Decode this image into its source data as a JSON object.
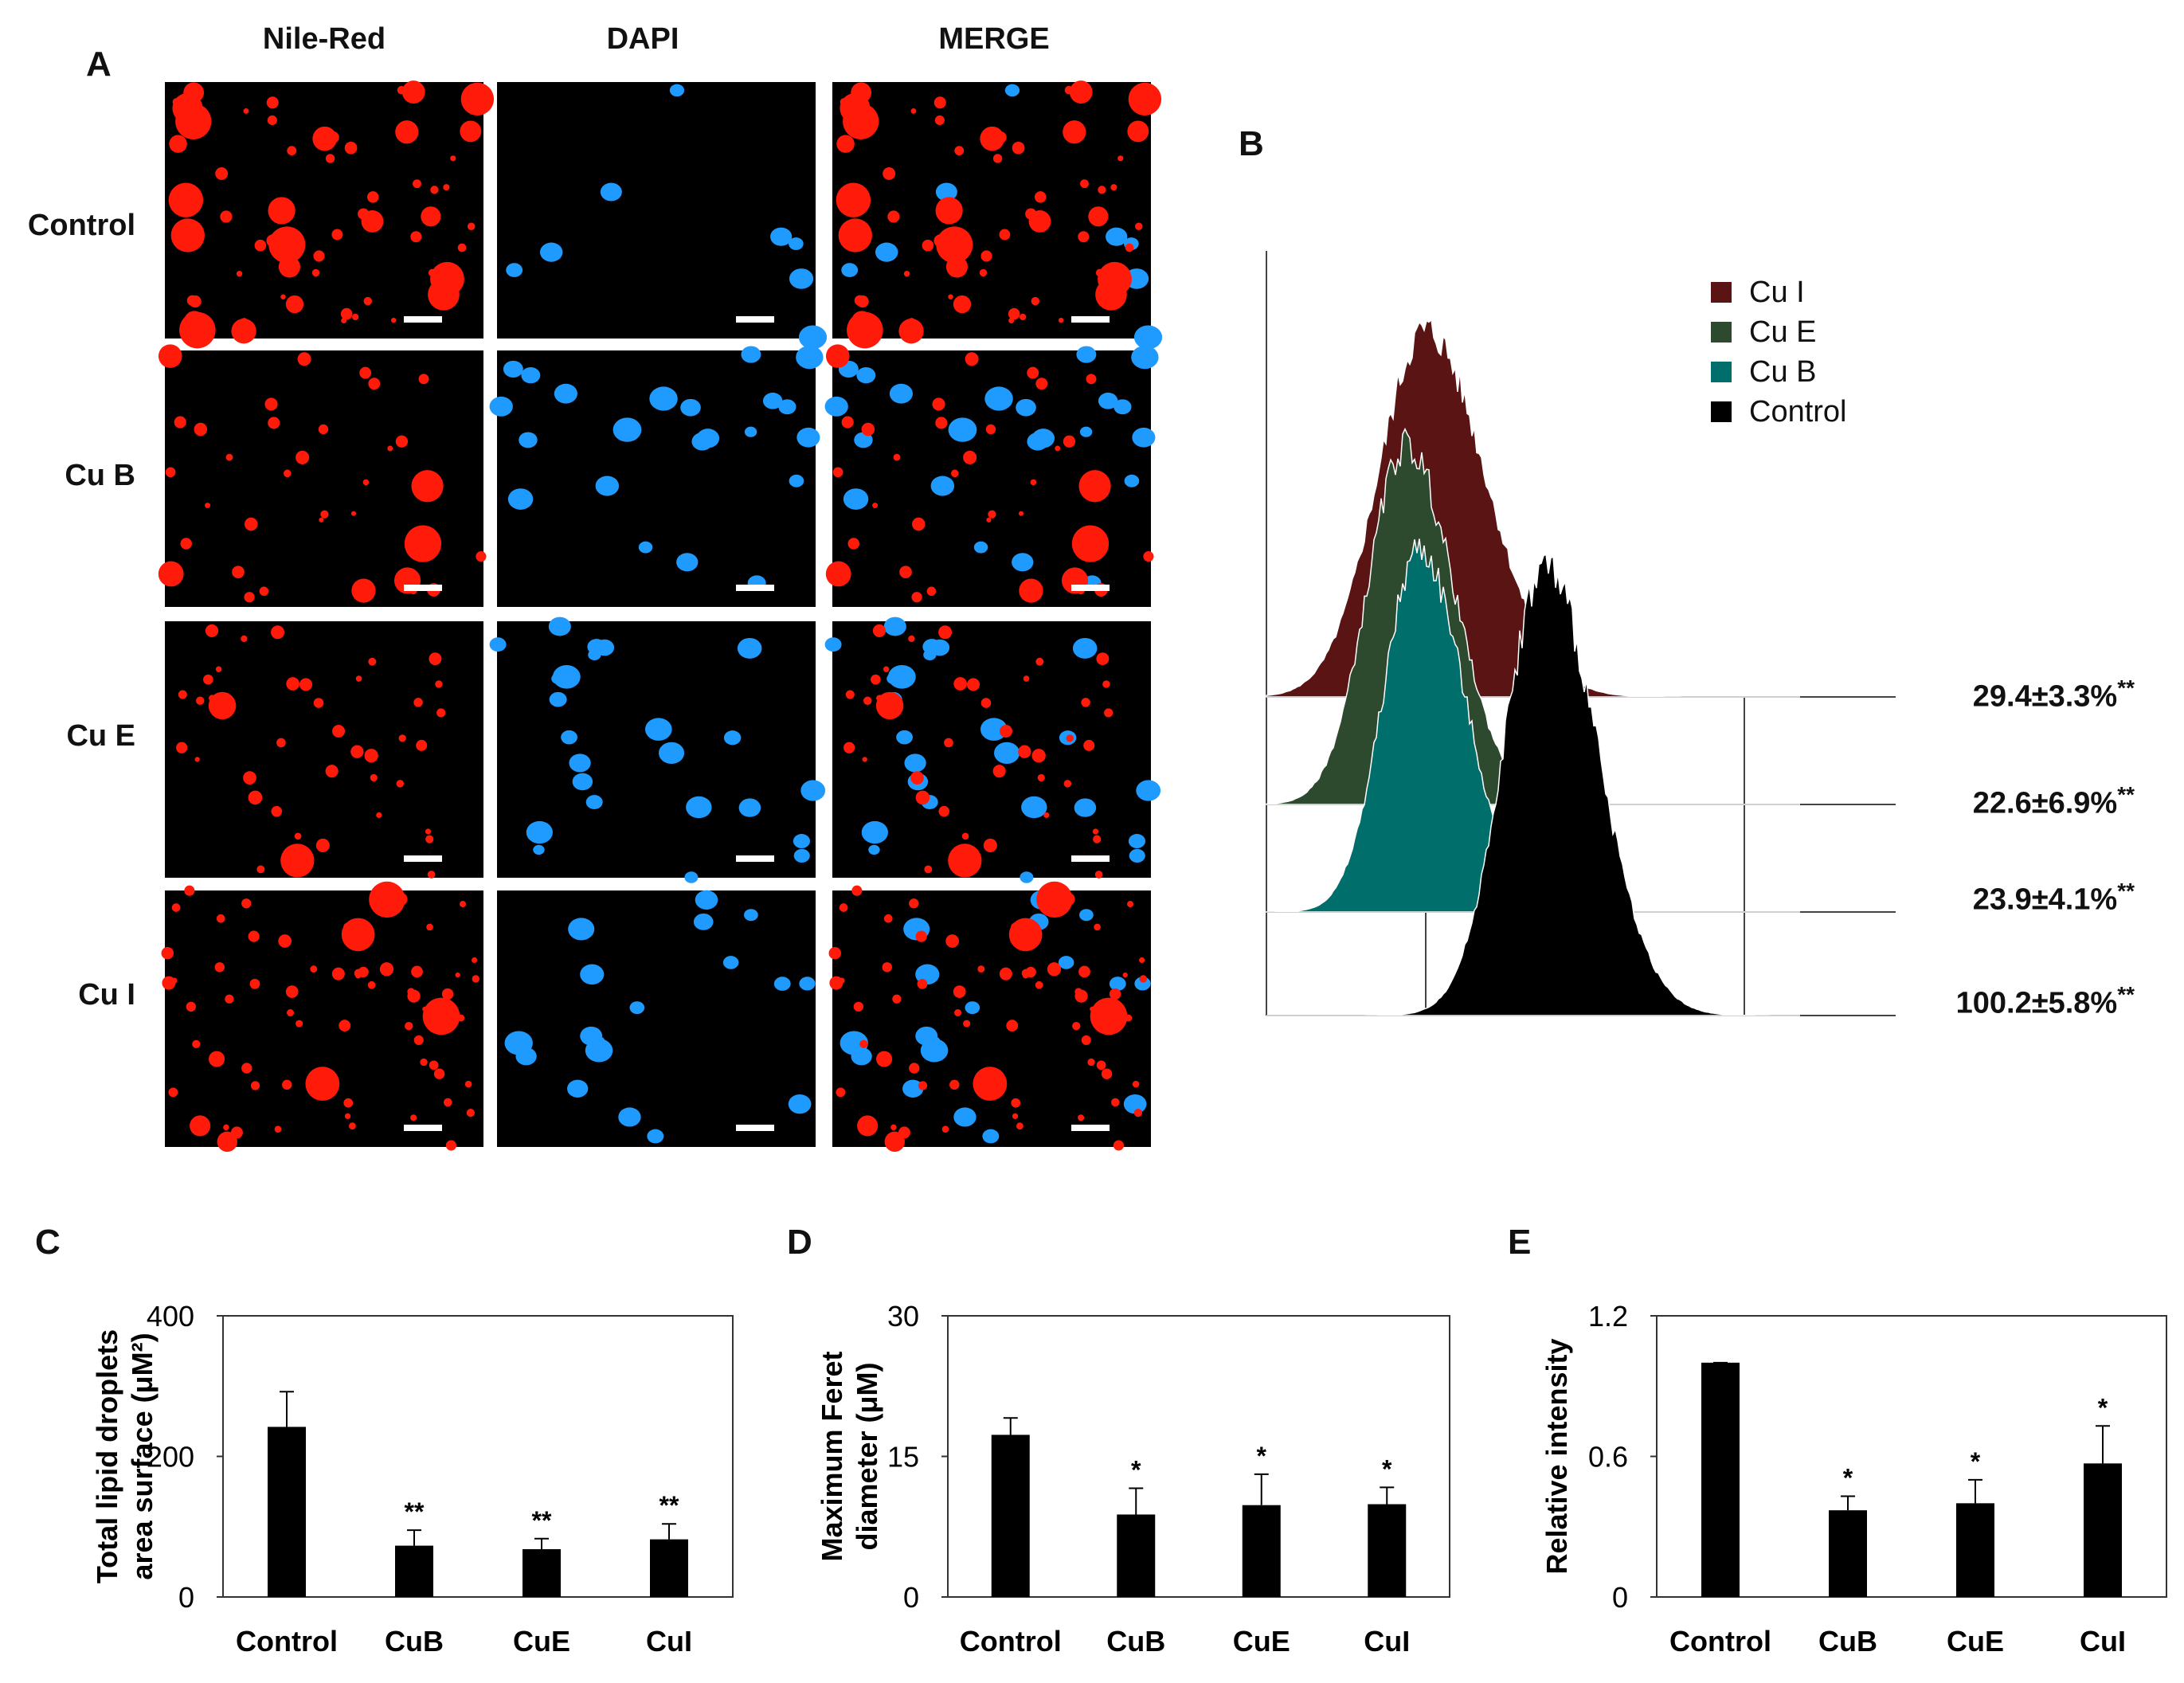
{
  "panel_labels": {
    "a": "A",
    "b": "B",
    "c": "C",
    "d": "D",
    "e": "E"
  },
  "panel_a": {
    "columns": [
      "Nile-Red",
      "DAPI",
      "MERGE"
    ],
    "rows": [
      "Control",
      "Cu B",
      "Cu E",
      "Cu I"
    ]
  },
  "colors": {
    "nile_red": "#ff1a0a",
    "dapi": "#1f9bff",
    "cu_i": "#5a1414",
    "cu_e": "#2e4a2e",
    "cu_b": "#006e6a",
    "control": "#000000"
  },
  "panel_b": {
    "legend": [
      {
        "label": "Cu I",
        "color": "#5a1414"
      },
      {
        "label": "Cu E",
        "color": "#2e4a2e"
      },
      {
        "label": "Cu B",
        "color": "#006e6a"
      },
      {
        "label": "Control",
        "color": "#000000"
      }
    ],
    "values": [
      {
        "text": "29.4±3.3%",
        "sig": "**"
      },
      {
        "text": "22.6±6.9%",
        "sig": "**"
      },
      {
        "text": "23.9±4.1%",
        "sig": "**"
      },
      {
        "text": "100.2±5.8%",
        "sig": "**"
      }
    ]
  },
  "chart_data": [
    {
      "panel": "C",
      "type": "bar",
      "ylabel": "Total lipid droplets area surface (μM²)",
      "ylabel_lines": [
        "Total lipid droplets",
        "area surface (μM²)"
      ],
      "categories": [
        "Control",
        "CuB",
        "CuE",
        "CuI"
      ],
      "values": [
        242,
        73,
        68,
        82
      ],
      "errors": [
        50,
        22,
        15,
        22
      ],
      "significance": [
        "",
        "**",
        "**",
        "**"
      ],
      "yticks": [
        "0",
        "200",
        "400"
      ],
      "ylim": [
        0,
        400
      ]
    },
    {
      "panel": "D",
      "type": "bar",
      "ylabel": "Maximum Feret diameter (μM)",
      "ylabel_lines": [
        "Maximum Feret",
        "diameter (μM)"
      ],
      "categories": [
        "Control",
        "CuB",
        "CuE",
        "CuI"
      ],
      "values": [
        17.3,
        8.8,
        9.8,
        9.9
      ],
      "errors": [
        1.8,
        2.8,
        3.3,
        1.8
      ],
      "significance": [
        "",
        "*",
        "*",
        "*"
      ],
      "yticks": [
        "0",
        "15",
        "30"
      ],
      "ylim": [
        0,
        30
      ]
    },
    {
      "panel": "E",
      "type": "bar",
      "ylabel": "Relative intensity",
      "ylabel_lines": [
        "Relative intensity"
      ],
      "categories": [
        "Control",
        "CuB",
        "CuE",
        "CuI"
      ],
      "values": [
        1.0,
        0.37,
        0.4,
        0.57
      ],
      "errors": [
        0.0,
        0.06,
        0.1,
        0.16
      ],
      "significance": [
        "",
        "*",
        "*",
        "*"
      ],
      "yticks": [
        "0",
        "0.6",
        "1.2"
      ],
      "ylim": [
        0,
        1.2
      ]
    }
  ]
}
